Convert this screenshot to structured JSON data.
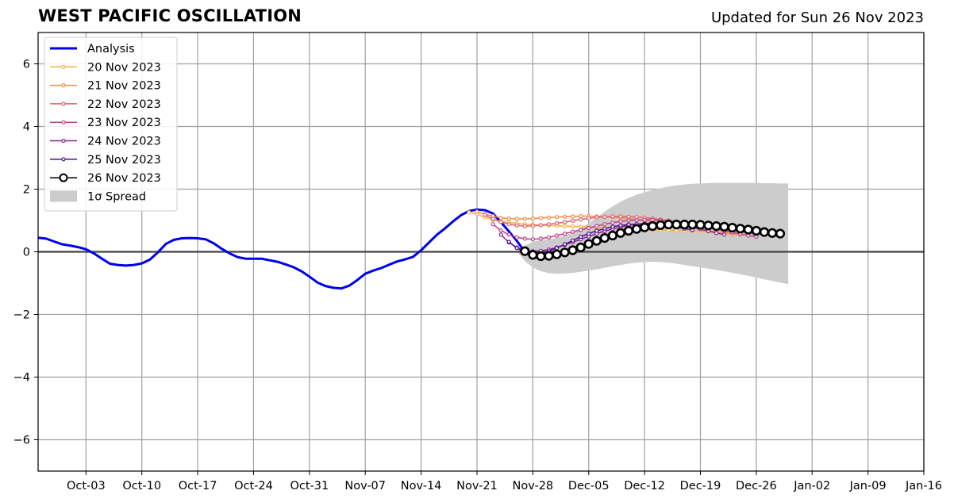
{
  "chart_data": {
    "type": "line",
    "title": "WEST PACIFIC OSCILLATION",
    "subtitle": "Updated for Sun 26 Nov 2023",
    "x_start": "2023-09-27",
    "x_end": "2024-01-16",
    "xlim": [
      "2023-09-27",
      "2024-01-16"
    ],
    "ylim": [
      -7,
      7
    ],
    "grid": true,
    "legend_position": "top-left",
    "x_ticks": [
      "Oct-03",
      "Oct-10",
      "Oct-17",
      "Oct-24",
      "Oct-31",
      "Nov-07",
      "Nov-14",
      "Nov-21",
      "Nov-28",
      "Dec-05",
      "Dec-12",
      "Dec-19",
      "Dec-26",
      "Jan-02",
      "Jan-09",
      "Jan-16"
    ],
    "y_ticks": [
      -6,
      -4,
      -2,
      0,
      2,
      4,
      6
    ],
    "y_tick_labels": [
      "−6",
      "−4",
      "−2",
      "0",
      "2",
      "4",
      "6"
    ],
    "analysis": {
      "name": "Analysis",
      "color": "#0000ee",
      "start": "2023-09-27",
      "values": [
        0.45,
        0.42,
        0.33,
        0.24,
        0.2,
        0.15,
        0.08,
        -0.05,
        -0.22,
        -0.38,
        -0.42,
        -0.44,
        -0.42,
        -0.37,
        -0.25,
        -0.02,
        0.25,
        0.38,
        0.43,
        0.44,
        0.43,
        0.4,
        0.27,
        0.1,
        -0.05,
        -0.17,
        -0.22,
        -0.22,
        -0.22,
        -0.27,
        -0.32,
        -0.4,
        -0.49,
        -0.62,
        -0.79,
        -0.98,
        -1.09,
        -1.15,
        -1.17,
        -1.08,
        -0.9,
        -0.7,
        -0.6,
        -0.52,
        -0.41,
        -0.31,
        -0.24,
        -0.16,
        0.05,
        0.3,
        0.55,
        0.75,
        0.97,
        1.17,
        1.3,
        1.35,
        1.33,
        1.22,
        0.95,
        0.65,
        0.35,
        0.0
      ]
    },
    "forecasts": [
      {
        "name": "20 Nov 2023",
        "color": "#fbb03b",
        "start": "2023-11-20",
        "values": [
          1.26,
          1.2,
          1.1,
          1.02,
          0.98,
          0.94,
          0.91,
          0.88,
          0.86,
          0.85,
          0.84,
          0.83,
          0.82,
          0.81,
          0.8,
          0.79,
          0.78,
          0.77,
          0.76,
          0.75,
          0.74,
          0.73,
          0.72,
          0.71,
          0.7,
          0.69,
          0.68,
          0.67,
          0.66,
          0.65,
          0.64,
          0.63,
          0.62,
          0.6,
          0.58
        ]
      },
      {
        "name": "21 Nov 2023",
        "color": "#f4894a",
        "start": "2023-11-21",
        "values": [
          1.28,
          1.2,
          1.14,
          1.08,
          1.06,
          1.05,
          1.05,
          1.06,
          1.08,
          1.09,
          1.11,
          1.12,
          1.13,
          1.14,
          1.14,
          1.13,
          1.12,
          1.11,
          1.09,
          1.06,
          1.03,
          1.0,
          0.96,
          0.92,
          0.88,
          0.84,
          0.8,
          0.76,
          0.72,
          0.68,
          0.64,
          0.6,
          0.57,
          0.55,
          0.53
        ]
      },
      {
        "name": "22 Nov 2023",
        "color": "#e05f70",
        "start": "2023-11-22",
        "values": [
          1.18,
          1.05,
          0.95,
          0.88,
          0.84,
          0.82,
          0.83,
          0.85,
          0.88,
          0.91,
          0.95,
          0.99,
          1.03,
          1.07,
          1.1,
          1.12,
          1.13,
          1.13,
          1.12,
          1.11,
          1.09,
          1.06,
          1.03,
          1.0,
          0.96,
          0.92,
          0.88,
          0.84,
          0.8,
          0.76,
          0.72,
          0.68,
          0.64,
          0.6,
          0.56
        ]
      },
      {
        "name": "23 Nov 2023",
        "color": "#be3e86",
        "start": "2023-11-23",
        "values": [
          0.88,
          0.68,
          0.55,
          0.46,
          0.42,
          0.4,
          0.42,
          0.46,
          0.52,
          0.58,
          0.64,
          0.7,
          0.76,
          0.82,
          0.88,
          0.93,
          0.97,
          1.0,
          1.01,
          1.02,
          1.02,
          1.0,
          0.98,
          0.95,
          0.91,
          0.87,
          0.82,
          0.77,
          0.72,
          0.67,
          0.62,
          0.57,
          0.52,
          0.48
        ]
      },
      {
        "name": "24 Nov 2023",
        "color": "#8c1e98",
        "start": "2023-11-24",
        "values": [
          0.55,
          0.3,
          0.14,
          0.05,
          0.02,
          0.03,
          0.07,
          0.14,
          0.22,
          0.31,
          0.4,
          0.49,
          0.58,
          0.66,
          0.73,
          0.79,
          0.84,
          0.88,
          0.91,
          0.92,
          0.92,
          0.9,
          0.87,
          0.83,
          0.78,
          0.72,
          0.66,
          0.6,
          0.55
        ]
      },
      {
        "name": "25 Nov 2023",
        "color": "#4b0c8c",
        "start": "2023-11-25",
        "values": [
          0.32,
          0.12,
          -0.02,
          -0.08,
          -0.06,
          0.02,
          0.12,
          0.24,
          0.36,
          0.48,
          0.58,
          0.67,
          0.74,
          0.8,
          0.84,
          0.87,
          0.88,
          0.88,
          0.87,
          0.85,
          0.82,
          0.78,
          0.74,
          0.7
        ]
      },
      {
        "name": "26 Nov 2023",
        "color": "#000000",
        "start": "2023-11-27",
        "values": [
          0.02,
          -0.1,
          -0.14,
          -0.13,
          -0.08,
          -0.02,
          0.05,
          0.14,
          0.25,
          0.35,
          0.44,
          0.52,
          0.6,
          0.67,
          0.73,
          0.78,
          0.82,
          0.85,
          0.87,
          0.87,
          0.87,
          0.87,
          0.86,
          0.84,
          0.82,
          0.8,
          0.77,
          0.74,
          0.71,
          0.67,
          0.63,
          0.6,
          0.58
        ]
      }
    ],
    "spread": {
      "name": "1σ Spread",
      "color": "#cccccc",
      "start": "2023-11-26",
      "upper": [
        0.02,
        0.2,
        0.32,
        0.38,
        0.4,
        0.45,
        0.52,
        0.62,
        0.75,
        0.92,
        1.1,
        1.28,
        1.45,
        1.6,
        1.72,
        1.82,
        1.9,
        1.97,
        2.03,
        2.08,
        2.12,
        2.15,
        2.17,
        2.18,
        2.19,
        2.2,
        2.2,
        2.2,
        2.2,
        2.2,
        2.2,
        2.19,
        2.19,
        2.18,
        2.18
      ],
      "lower": [
        0.02,
        -0.3,
        -0.5,
        -0.62,
        -0.68,
        -0.7,
        -0.69,
        -0.67,
        -0.64,
        -0.6,
        -0.56,
        -0.51,
        -0.46,
        -0.42,
        -0.38,
        -0.35,
        -0.33,
        -0.32,
        -0.33,
        -0.35,
        -0.38,
        -0.42,
        -0.46,
        -0.5,
        -0.54,
        -0.58,
        -0.62,
        -0.67,
        -0.72,
        -0.77,
        -0.82,
        -0.88,
        -0.93,
        -0.98,
        -1.03
      ]
    }
  }
}
